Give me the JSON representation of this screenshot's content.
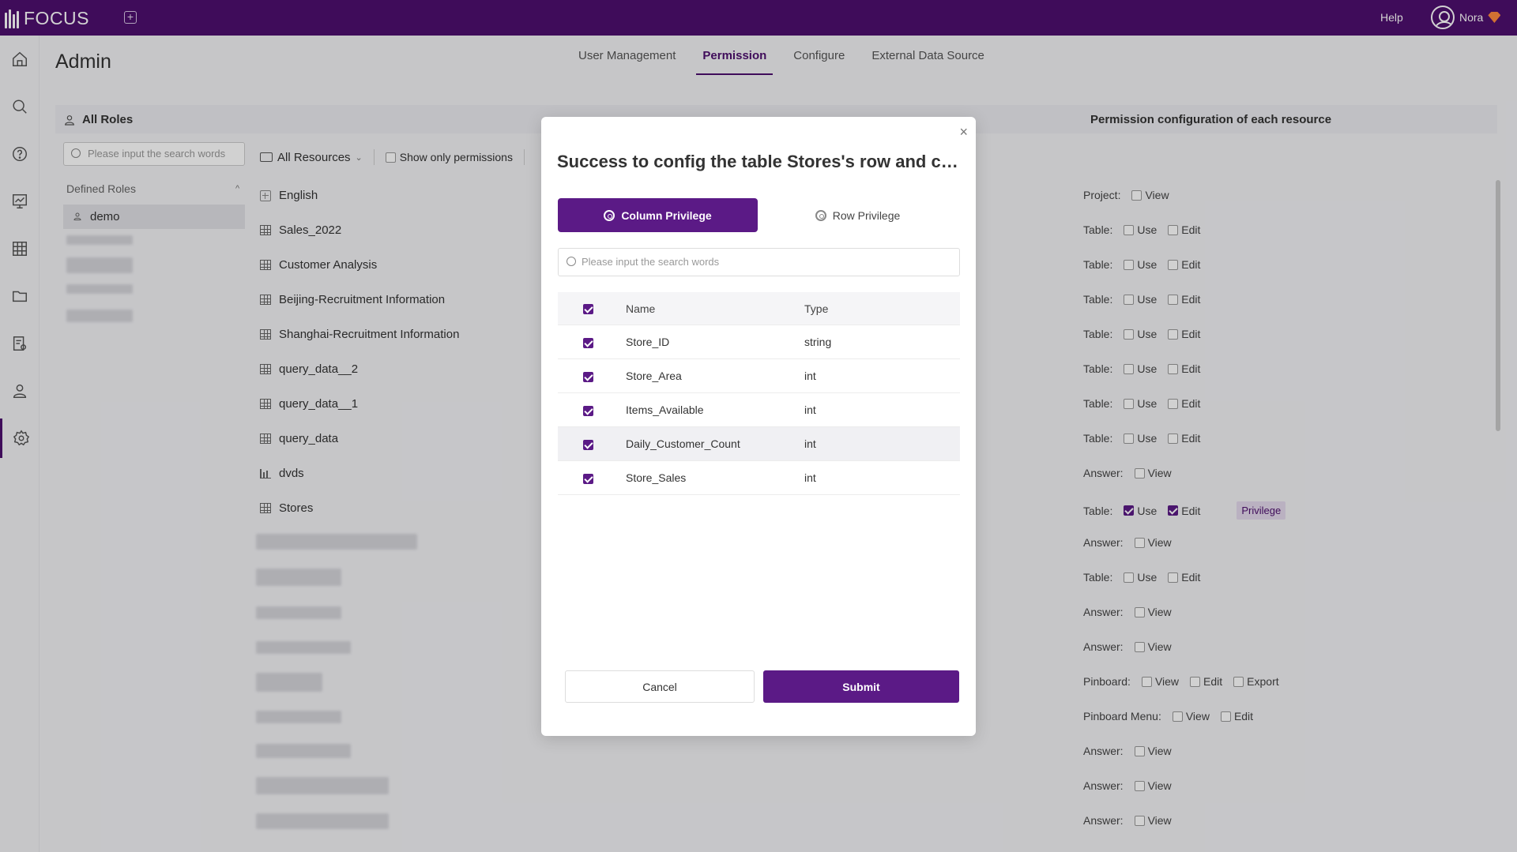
{
  "app": {
    "logo_text": "FOCUS",
    "help_label": "Help",
    "user_name": "Nora"
  },
  "page": {
    "title": "Admin"
  },
  "tabs": [
    {
      "label": "User Management",
      "active": false
    },
    {
      "label": "Permission",
      "active": true
    },
    {
      "label": "Configure",
      "active": false
    },
    {
      "label": "External Data Source",
      "active": false
    }
  ],
  "roles_panel": {
    "header": "All Roles",
    "search_placeholder": "Please input the search words",
    "defined_roles_label": "Defined Roles",
    "selected_role": "demo"
  },
  "resources_panel": {
    "filter_label": "All Resources",
    "show_only_label": "Show only permissions",
    "items": [
      {
        "label": "English",
        "icon": "expand-icon"
      },
      {
        "label": "Sales_2022",
        "icon": "table-icon"
      },
      {
        "label": "Customer Analysis",
        "icon": "table-icon"
      },
      {
        "label": "Beijing-Recruitment Information",
        "icon": "table-icon"
      },
      {
        "label": "Shanghai-Recruitment Information",
        "icon": "table-icon"
      },
      {
        "label": "query_data__2",
        "icon": "table-icon"
      },
      {
        "label": "query_data__1",
        "icon": "table-icon"
      },
      {
        "label": "query_data",
        "icon": "table-icon"
      },
      {
        "label": "dvds",
        "icon": "chart-icon"
      },
      {
        "label": "Stores",
        "icon": "table-icon"
      }
    ]
  },
  "permission_panel": {
    "header": "Permission configuration of each resource",
    "rows": [
      {
        "type": "Project:",
        "options": [
          "View"
        ],
        "checked": [
          false
        ]
      },
      {
        "type": "Table:",
        "options": [
          "Use",
          "Edit"
        ],
        "checked": [
          false,
          false
        ]
      },
      {
        "type": "Table:",
        "options": [
          "Use",
          "Edit"
        ],
        "checked": [
          false,
          false
        ]
      },
      {
        "type": "Table:",
        "options": [
          "Use",
          "Edit"
        ],
        "checked": [
          false,
          false
        ]
      },
      {
        "type": "Table:",
        "options": [
          "Use",
          "Edit"
        ],
        "checked": [
          false,
          false
        ]
      },
      {
        "type": "Table:",
        "options": [
          "Use",
          "Edit"
        ],
        "checked": [
          false,
          false
        ]
      },
      {
        "type": "Table:",
        "options": [
          "Use",
          "Edit"
        ],
        "checked": [
          false,
          false
        ]
      },
      {
        "type": "Table:",
        "options": [
          "Use",
          "Edit"
        ],
        "checked": [
          false,
          false
        ]
      },
      {
        "type": "Answer:",
        "options": [
          "View"
        ],
        "checked": [
          false
        ]
      },
      {
        "type": "Table:",
        "options": [
          "Use",
          "Edit"
        ],
        "checked": [
          true,
          true
        ],
        "privilege_button": "Privilege"
      },
      {
        "type": "Answer:",
        "options": [
          "View"
        ],
        "checked": [
          false
        ]
      },
      {
        "type": "Table:",
        "options": [
          "Use",
          "Edit"
        ],
        "checked": [
          false,
          false
        ]
      },
      {
        "type": "Answer:",
        "options": [
          "View"
        ],
        "checked": [
          false
        ]
      },
      {
        "type": "Answer:",
        "options": [
          "View"
        ],
        "checked": [
          false
        ]
      },
      {
        "type": "Pinboard:",
        "options": [
          "View",
          "Edit",
          "Export"
        ],
        "checked": [
          false,
          false,
          false
        ]
      },
      {
        "type": "Pinboard Menu:",
        "options": [
          "View",
          "Edit"
        ],
        "checked": [
          false,
          false
        ]
      },
      {
        "type": "Answer:",
        "options": [
          "View"
        ],
        "checked": [
          false
        ]
      },
      {
        "type": "Answer:",
        "options": [
          "View"
        ],
        "checked": [
          false
        ]
      },
      {
        "type": "Answer:",
        "options": [
          "View"
        ],
        "checked": [
          false
        ]
      }
    ]
  },
  "modal": {
    "close_icon": "×",
    "title": "Success to config the table Stores's row and col...",
    "column_privilege_label": "Column Privilege",
    "row_privilege_label": "Row Privilege",
    "search_placeholder": "Please input the search words",
    "table_headers": {
      "name": "Name",
      "type": "Type"
    },
    "columns": [
      {
        "name": "Store_ID",
        "type": "string",
        "checked": true
      },
      {
        "name": "Store_Area",
        "type": "int",
        "checked": true
      },
      {
        "name": "Items_Available",
        "type": "int",
        "checked": true
      },
      {
        "name": "Daily_Customer_Count",
        "type": "int",
        "checked": true
      },
      {
        "name": "Store_Sales",
        "type": "int",
        "checked": true
      }
    ],
    "cancel_label": "Cancel",
    "submit_label": "Submit"
  },
  "colors": {
    "brand": "#4e0f6e",
    "accent": "#5b1a86"
  }
}
